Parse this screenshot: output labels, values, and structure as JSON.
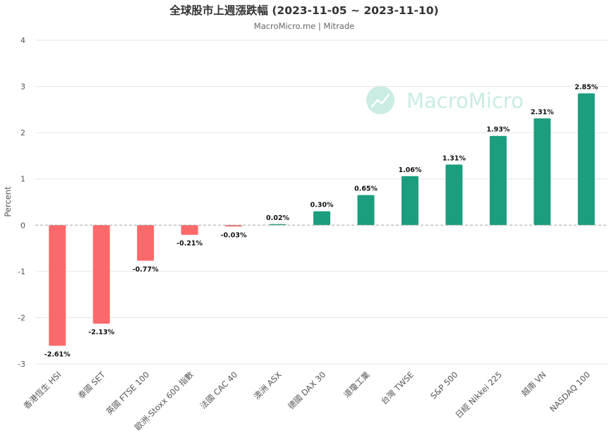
{
  "chart_data": {
    "type": "bar",
    "title": "全球股市上週漲跌幅 (2023-11-05 ~ 2023-11-10)",
    "subtitle": "MacroMicro.me | Mitrade",
    "watermark": "MacroMicro",
    "xlabel": "",
    "ylabel": "Percent",
    "ylim": [
      -3,
      4
    ],
    "yticks": [
      -3,
      -2,
      -1,
      0,
      1,
      2,
      3,
      4
    ],
    "grid": true,
    "legend": "none",
    "categories": [
      "香港恆生 HSI",
      "泰國 SET",
      "英國 FTSE 100",
      "歐洲-Stoxx 600 指數",
      "法國 CAC 40",
      "澳洲 ASX",
      "德國 DAX 30",
      "道瓊工業",
      "台灣 TWSE",
      "S&P 500",
      "日經 Nikkei 225",
      "越南 VN",
      "NASDAQ 100"
    ],
    "values": [
      -2.61,
      -2.13,
      -0.77,
      -0.21,
      -0.03,
      0.02,
      0.3,
      0.65,
      1.06,
      1.31,
      1.93,
      2.31,
      2.85
    ],
    "data_labels": [
      "-2.61%",
      "-2.13%",
      "-0.77%",
      "-0.21%",
      "-0.03%",
      "0.02%",
      "0.30%",
      "0.65%",
      "1.06%",
      "1.31%",
      "1.93%",
      "2.31%",
      "2.85%"
    ],
    "colors": {
      "positive": "#1b9e7e",
      "negative": "#fb6a6a",
      "grid": "#e6e6e6",
      "zero_line": "#a0a0a0",
      "watermark": "#c9ece4",
      "text": "#333333",
      "axis_text": "#555555"
    }
  }
}
